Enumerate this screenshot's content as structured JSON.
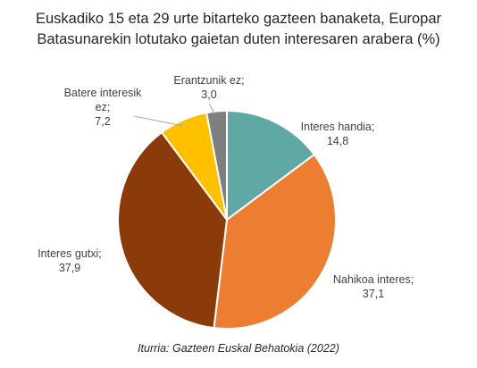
{
  "chart_data": {
    "type": "pie",
    "title_lines": [
      "Euskadiko 15 eta 29 urte bitarteko gazteen banaketa, Europar",
      "Batasunarekin lotutako gaietan duten interesaren arabera (%)"
    ],
    "slices": [
      {
        "name_lines": [
          "Interes handia;"
        ],
        "value": 14.8,
        "value_text": "14,8",
        "color": "#5fa8a4"
      },
      {
        "name_lines": [
          "Nahikoa interes;"
        ],
        "value": 37.1,
        "value_text": "37,1",
        "color": "#ed7d31"
      },
      {
        "name_lines": [
          "Interes gutxi;"
        ],
        "value": 37.9,
        "value_text": "37,9",
        "color": "#8b3b0a"
      },
      {
        "name_lines": [
          "Batere interesik",
          "ez;"
        ],
        "value": 7.2,
        "value_text": "7,2",
        "color": "#ffc000"
      },
      {
        "name_lines": [
          "Erantzunik ez;"
        ],
        "value": 3.0,
        "value_text": "3,0",
        "color": "#7f7f7f"
      }
    ],
    "source": "Iturria: Gazteen Euskal Behatokia (2022)"
  }
}
